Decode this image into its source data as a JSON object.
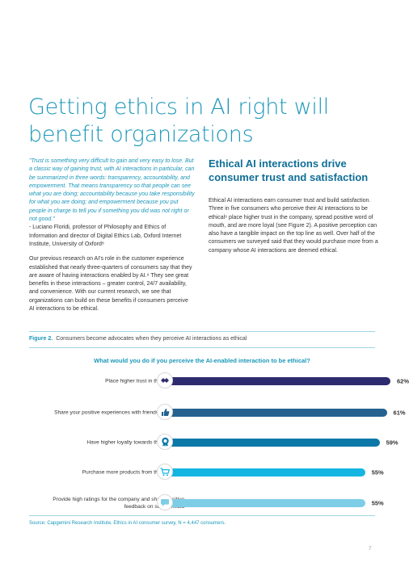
{
  "title": "Getting ethics in AI right will benefit organizations",
  "quote": "\"Trust is something very difficult to gain and very easy to lose. But a classic way of gaining trust, with AI interactions in particular, can be summarized in three words: transparency, accountability, and empowerment. That means transparency so that people can see what you are doing; accountability because you take responsibility for what you are doing; and empowerment because you put people in charge to tell you if something you did was not right or not good.\"",
  "attribution": "- Luciano Floridi, professor of Philosophy and Ethics of Information and director of Digital Ethics Lab, Oxford Internet Institute, University of Oxford⁸",
  "left_paragraph": "Our previous research on AI's role in the customer experience established that nearly three-quarters of consumers say that they are aware of having interactions enabled by AI.⁹ They see great benefits in these interactions – greater control, 24/7 availability, and convenience. With our current research, we see that organizations can build on these benefits if consumers perceive AI interactions to be ethical.",
  "section_heading": "Ethical AI interactions drive consumer trust and satisfaction",
  "right_paragraph": "Ethical AI interactions earn consumer trust and build satisfaction. Three in five consumers who perceive their AI interactions to be ethical⁶ place higher trust in the company, spread positive word of mouth, and are more loyal (see Figure 2). A positive perception can also have a tangible impact on the top line as well. Over half of the consumers we surveyed said that they would purchase more from a company whose AI interactions are deemed ethical.",
  "figure": {
    "label": "Figure 2.",
    "caption": "Consumers become advocates when they perceive AI interactions as ethical",
    "source": "Source: Capgemini Research Institute, Ethics in AI consumer survey, N = 4,447 consumers."
  },
  "page_number": "7",
  "chart_data": {
    "type": "bar",
    "orientation": "horizontal",
    "title": "What would you do if you perceive the AI-enabled interaction to be ethical?",
    "categories": [
      "Place higher trust in the company",
      "Share your positive experiences with friends and family",
      "Have higher loyalty towards the company",
      "Purchase more products from the company",
      "Provide high ratings for the company and share positive feedback on social media"
    ],
    "values": [
      62,
      61,
      59,
      55,
      55
    ],
    "value_labels": [
      "62%",
      "61%",
      "59%",
      "55%",
      "55%"
    ],
    "unit": "%",
    "xlim": [
      0,
      100
    ],
    "grid": false,
    "legend": "none",
    "colors": [
      "#2e2c6e",
      "#25628f",
      "#0b78a8",
      "#14b6e1",
      "#7ecde7"
    ],
    "icons": [
      "handshake-icon",
      "thumbs-up-icon",
      "rosette-badge-icon",
      "shopping-cart-icon",
      "speech-bubble-icon"
    ]
  }
}
